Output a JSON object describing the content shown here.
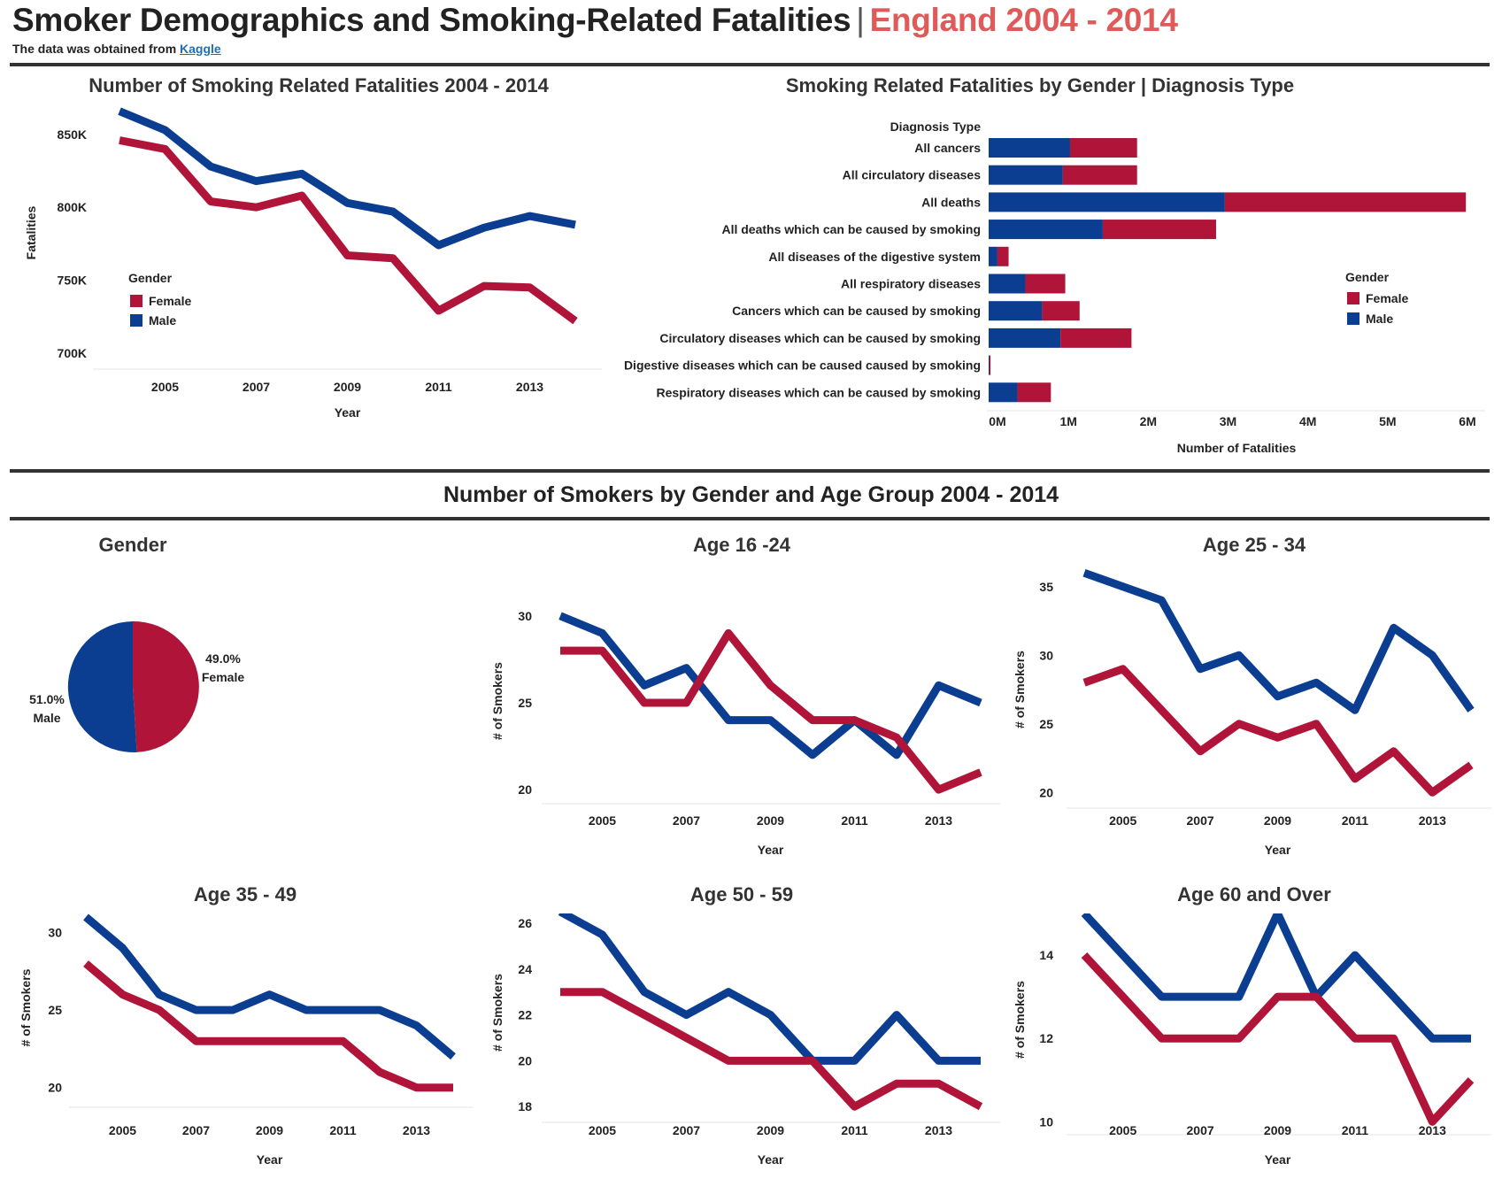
{
  "header": {
    "title_main": "Smoker Demographics and Smoking-Related Fatalities",
    "title_separator": "|",
    "title_accent": "England 2004 - 2014",
    "subtitle_prefix": "The data was obtained from",
    "subtitle_link": "Kaggle"
  },
  "section2_title": "Number of Smokers by Gender and Age Group 2004 - 2014",
  "colors": {
    "female": "#b01539",
    "male": "#0b3d91",
    "accent": "#e05a5a",
    "rule": "#333333"
  },
  "chart_data": [
    {
      "id": "fatalities_line",
      "type": "line",
      "title": "Number of Smoking Related Fatalities 2004 - 2014",
      "xlabel": "Year",
      "ylabel": "Fatalities",
      "x": [
        2004,
        2005,
        2006,
        2007,
        2008,
        2009,
        2010,
        2011,
        2012,
        2013,
        2014
      ],
      "x_ticks": [
        "2005",
        "2007",
        "2009",
        "2011",
        "2013"
      ],
      "y_ticks": [
        "700K",
        "750K",
        "800K",
        "850K"
      ],
      "ylim": [
        695000,
        870000
      ],
      "legend": {
        "title": "Gender",
        "entries": [
          "Female",
          "Male"
        ]
      },
      "series": [
        {
          "name": "Female",
          "values": [
            846000,
            840000,
            804000,
            800000,
            808000,
            767000,
            765000,
            729000,
            746000,
            745000,
            722000
          ]
        },
        {
          "name": "Male",
          "values": [
            866000,
            853000,
            828000,
            818000,
            823000,
            803000,
            797000,
            774000,
            786000,
            794000,
            788000
          ]
        }
      ]
    },
    {
      "id": "diagnosis_bar",
      "type": "bar",
      "orientation": "horizontal",
      "stacked": true,
      "title": "Smoking Related Fatalities by Gender | Diagnosis Type",
      "category_header": "Diagnosis Type",
      "xlabel": "Number of Fatalities",
      "x_ticks": [
        "0M",
        "1M",
        "2M",
        "3M",
        "4M",
        "5M",
        "6M"
      ],
      "xlim": [
        0,
        6000000
      ],
      "legend": {
        "title": "Gender",
        "entries": [
          "Female",
          "Male"
        ]
      },
      "categories": [
        "All cancers",
        "All circulatory diseases",
        "All deaths",
        "All deaths which can be caused by smoking",
        "All diseases of the digestive system",
        "All respiratory diseases",
        "Cancers which can be caused by smoking",
        "Circulatory diseases which can be caused by smoking",
        "Digestive diseases which can be caused caused by smoking",
        "Respiratory diseases which can be caused by smoking"
      ],
      "series": [
        {
          "name": "Male",
          "values": [
            1020000,
            930000,
            2960000,
            1430000,
            110000,
            460000,
            670000,
            900000,
            10000,
            360000
          ]
        },
        {
          "name": "Female",
          "values": [
            840000,
            930000,
            3020000,
            1420000,
            140000,
            500000,
            470000,
            890000,
            10000,
            420000
          ]
        }
      ]
    },
    {
      "id": "gender_pie",
      "type": "pie",
      "title": "Gender",
      "slices": [
        {
          "label": "Female",
          "value": 49.0,
          "text": "49.0%"
        },
        {
          "label": "Male",
          "value": 51.0,
          "text": "51.0%"
        }
      ]
    },
    {
      "id": "age_16_24",
      "type": "line",
      "title": "Age 16 -24",
      "xlabel": "Year",
      "ylabel": "# of Smokers",
      "x": [
        2004,
        2005,
        2006,
        2007,
        2008,
        2009,
        2010,
        2011,
        2012,
        2013,
        2014
      ],
      "x_ticks": [
        "2005",
        "2007",
        "2009",
        "2011",
        "2013"
      ],
      "y_ticks": [
        "20",
        "25",
        "30"
      ],
      "ylim": [
        19.7,
        30.5
      ],
      "series": [
        {
          "name": "Female",
          "values": [
            28,
            28,
            25,
            25,
            29,
            26,
            24,
            24,
            23,
            20,
            21
          ]
        },
        {
          "name": "Male",
          "values": [
            30,
            29,
            26,
            27,
            24,
            24,
            22,
            24,
            22,
            26,
            25
          ]
        }
      ]
    },
    {
      "id": "age_25_34",
      "type": "line",
      "title": "Age 25 - 34",
      "xlabel": "Year",
      "ylabel": "# of Smokers",
      "x": [
        2004,
        2005,
        2006,
        2007,
        2008,
        2009,
        2010,
        2011,
        2012,
        2013,
        2014
      ],
      "x_ticks": [
        "2005",
        "2007",
        "2009",
        "2011",
        "2013"
      ],
      "y_ticks": [
        "20",
        "25",
        "30",
        "35"
      ],
      "ylim": [
        19.5,
        35.5
      ],
      "series": [
        {
          "name": "Female",
          "values": [
            28,
            29,
            26,
            23,
            25,
            24,
            25,
            21,
            23,
            20,
            22
          ]
        },
        {
          "name": "Male",
          "values": [
            36,
            35,
            34,
            29,
            30,
            27,
            28,
            26,
            32,
            30,
            26
          ]
        }
      ]
    },
    {
      "id": "age_35_49",
      "type": "line",
      "title": "Age 35 - 49",
      "xlabel": "Year",
      "ylabel": "# of Smokers",
      "x": [
        2004,
        2005,
        2006,
        2007,
        2008,
        2009,
        2010,
        2011,
        2012,
        2013,
        2014
      ],
      "x_ticks": [
        "2005",
        "2007",
        "2009",
        "2011",
        "2013"
      ],
      "y_ticks": [
        "20",
        "25",
        "30"
      ],
      "ylim": [
        19.3,
        31
      ],
      "series": [
        {
          "name": "Female",
          "values": [
            28,
            26,
            25,
            23,
            23,
            23,
            23,
            23,
            21,
            20,
            20
          ]
        },
        {
          "name": "Male",
          "values": [
            31,
            29,
            26,
            25,
            25,
            26,
            25,
            25,
            25,
            24,
            22
          ]
        }
      ]
    },
    {
      "id": "age_50_59",
      "type": "line",
      "title": "Age 50 - 59",
      "xlabel": "Year",
      "ylabel": "# of Smokers",
      "x": [
        2004,
        2005,
        2006,
        2007,
        2008,
        2009,
        2010,
        2011,
        2012,
        2013,
        2014
      ],
      "x_ticks": [
        "2005",
        "2007",
        "2009",
        "2011",
        "2013"
      ],
      "y_ticks": [
        "18",
        "20",
        "22",
        "24",
        "26"
      ],
      "ylim": [
        17.7,
        26.5
      ],
      "series": [
        {
          "name": "Female",
          "values": [
            23,
            23,
            22,
            21,
            20,
            20,
            20,
            18,
            19,
            19,
            18
          ]
        },
        {
          "name": "Male",
          "values": [
            26.5,
            25.5,
            23,
            22,
            23,
            22,
            20,
            20,
            22,
            20,
            20
          ]
        }
      ]
    },
    {
      "id": "age_60_over",
      "type": "line",
      "title": "Age 60 and Over",
      "xlabel": "Year",
      "ylabel": "# of Smokers",
      "x": [
        2004,
        2005,
        2006,
        2007,
        2008,
        2009,
        2010,
        2011,
        2012,
        2013,
        2014
      ],
      "x_ticks": [
        "2005",
        "2007",
        "2009",
        "2011",
        "2013"
      ],
      "y_ticks": [
        "10",
        "12",
        "14"
      ],
      "ylim": [
        9.9,
        15
      ],
      "series": [
        {
          "name": "Female",
          "values": [
            14,
            13,
            12,
            12,
            12,
            13,
            13,
            12,
            12,
            10,
            11
          ]
        },
        {
          "name": "Male",
          "values": [
            15,
            14,
            13,
            13,
            13,
            15,
            13,
            14,
            13,
            12,
            12
          ]
        }
      ]
    }
  ]
}
